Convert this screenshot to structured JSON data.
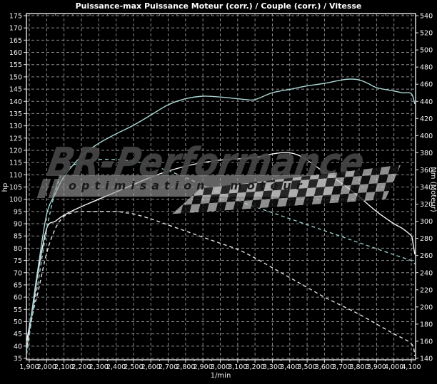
{
  "watermark": {
    "brand": "BR-Performance",
    "tagline": "optimisation moteur"
  },
  "colors": {
    "background": "#000000",
    "grid": "#8c8c8c",
    "frame": "#e8e8e8",
    "title": "#ffffff",
    "white_solid": "#f5f5f5",
    "white_dashed": "#e2e2e2",
    "cyan_solid": "#a8d6d3",
    "cyan_dashed": "#93c8c5"
  },
  "chart_data": {
    "type": "line",
    "title": "Puissance-max Puissance Moteur (corr.) / Couple (corr.) / Vitesse",
    "grid": true,
    "x_axis": {
      "label": "1/min",
      "min": 1900,
      "max": 4100,
      "tick_step": 100,
      "tick_labels": [
        "1,900",
        "2,000",
        "2,100",
        "2,200",
        "2,300",
        "2,400",
        "2,500",
        "2,600",
        "2,700",
        "2,800",
        "2,900",
        "3,000",
        "3,100",
        "3,200",
        "3,300",
        "3,400",
        "3,500",
        "3,600",
        "3,700",
        "3,800",
        "3,900",
        "4,000",
        "4,100"
      ]
    },
    "y_left": {
      "label": "hp",
      "min": 35,
      "max": 175,
      "tick_step": 5,
      "ticks": [
        35,
        40,
        45,
        50,
        55,
        60,
        65,
        70,
        75,
        80,
        85,
        90,
        95,
        100,
        105,
        110,
        115,
        120,
        125,
        130,
        135,
        140,
        145,
        150,
        155,
        160,
        165,
        170,
        175
      ]
    },
    "y_right": {
      "label": "Nm (Moteur)",
      "min": 140,
      "max": 540,
      "tick_step": 20,
      "ticks": [
        140,
        160,
        180,
        200,
        220,
        240,
        260,
        280,
        300,
        320,
        340,
        360,
        380,
        400,
        420,
        440,
        460,
        480,
        500,
        520,
        540
      ]
    },
    "series": [
      {
        "name": "Puissance Moteur (corr.)",
        "axis": "left",
        "style": "solid",
        "color": "#f5f5f5",
        "points": [
          [
            1885,
            42
          ],
          [
            1925,
            58
          ],
          [
            1950,
            70
          ],
          [
            2000,
            88
          ],
          [
            2050,
            91
          ],
          [
            2100,
            93.5
          ],
          [
            2200,
            97
          ],
          [
            2300,
            100
          ],
          [
            2400,
            103
          ],
          [
            2500,
            106
          ],
          [
            2600,
            109
          ],
          [
            2700,
            111.5
          ],
          [
            2800,
            113.5
          ],
          [
            2900,
            115
          ],
          [
            3000,
            116
          ],
          [
            3100,
            116.5
          ],
          [
            3200,
            117
          ],
          [
            3300,
            118.5
          ],
          [
            3350,
            119
          ],
          [
            3400,
            119
          ],
          [
            3450,
            118
          ],
          [
            3500,
            116
          ],
          [
            3600,
            111
          ],
          [
            3700,
            106.5
          ],
          [
            3800,
            101
          ],
          [
            3900,
            95
          ],
          [
            4000,
            90
          ],
          [
            4050,
            88
          ],
          [
            4100,
            85
          ],
          [
            4110,
            82
          ],
          [
            4120,
            77.5
          ]
        ]
      },
      {
        "name": "Couple (corr.)",
        "axis": "right",
        "style": "solid",
        "color": "#a8d6d3",
        "points": [
          [
            1885,
            150
          ],
          [
            1925,
            210
          ],
          [
            1950,
            245
          ],
          [
            2000,
            308
          ],
          [
            2050,
            332
          ],
          [
            2100,
            352
          ],
          [
            2200,
            376
          ],
          [
            2300,
            391
          ],
          [
            2400,
            402
          ],
          [
            2500,
            412
          ],
          [
            2600,
            424
          ],
          [
            2700,
            436
          ],
          [
            2800,
            443
          ],
          [
            2900,
            446
          ],
          [
            3000,
            445
          ],
          [
            3100,
            443
          ],
          [
            3150,
            442
          ],
          [
            3200,
            442
          ],
          [
            3300,
            450
          ],
          [
            3400,
            454
          ],
          [
            3500,
            458
          ],
          [
            3600,
            461
          ],
          [
            3700,
            465
          ],
          [
            3750,
            466
          ],
          [
            3800,
            465
          ],
          [
            3850,
            461
          ],
          [
            3900,
            456
          ],
          [
            4000,
            452
          ],
          [
            4050,
            450
          ],
          [
            4100,
            449
          ],
          [
            4120,
            437
          ]
        ]
      },
      {
        "name": "Puissance-max",
        "axis": "left",
        "style": "dashed",
        "color": "#e2e2e2",
        "points": [
          [
            1885,
            40
          ],
          [
            1925,
            55
          ],
          [
            1950,
            62
          ],
          [
            2000,
            78
          ],
          [
            2050,
            88
          ],
          [
            2100,
            93
          ],
          [
            2150,
            94.5
          ],
          [
            2200,
            95
          ],
          [
            2300,
            95
          ],
          [
            2400,
            95
          ],
          [
            2450,
            94.5
          ],
          [
            2500,
            94
          ],
          [
            2600,
            92
          ],
          [
            2700,
            89.5
          ],
          [
            2800,
            87
          ],
          [
            2900,
            84.5
          ],
          [
            3000,
            82
          ],
          [
            3100,
            79.5
          ],
          [
            3200,
            76
          ],
          [
            3300,
            72
          ],
          [
            3400,
            68
          ],
          [
            3500,
            64
          ],
          [
            3600,
            60
          ],
          [
            3700,
            56.5
          ],
          [
            3800,
            53
          ],
          [
            3900,
            49
          ],
          [
            4000,
            45
          ],
          [
            4100,
            41
          ],
          [
            4120,
            36
          ]
        ]
      },
      {
        "name": "Vitesse",
        "axis": "right",
        "style": "dashed",
        "color": "#93c8c5",
        "points": [
          [
            1885,
            145
          ],
          [
            1925,
            200
          ],
          [
            1950,
            228
          ],
          [
            2000,
            290
          ],
          [
            2050,
            335
          ],
          [
            2100,
            358
          ],
          [
            2200,
            369
          ],
          [
            2300,
            372
          ],
          [
            2400,
            372
          ],
          [
            2500,
            370
          ],
          [
            2600,
            365
          ],
          [
            2700,
            359
          ],
          [
            2800,
            351
          ],
          [
            2900,
            342
          ],
          [
            3000,
            333
          ],
          [
            3100,
            324
          ],
          [
            3200,
            317
          ],
          [
            3300,
            310
          ],
          [
            3400,
            303
          ],
          [
            3500,
            296
          ],
          [
            3600,
            289
          ],
          [
            3700,
            282
          ],
          [
            3800,
            275
          ],
          [
            3900,
            268
          ],
          [
            4000,
            261
          ],
          [
            4100,
            254
          ],
          [
            4120,
            250
          ]
        ]
      }
    ]
  }
}
